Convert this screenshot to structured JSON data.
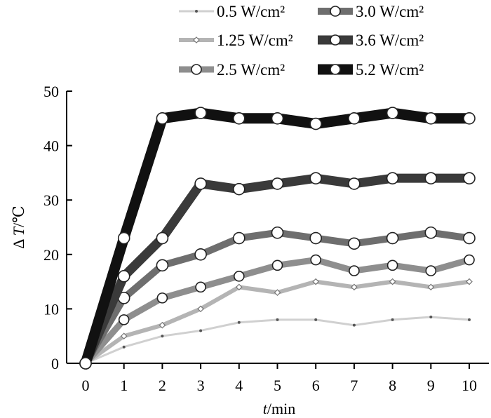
{
  "chart_data": {
    "type": "line",
    "title": "",
    "xlabel": {
      "italic": "t",
      "unit": "/min"
    },
    "ylabel": {
      "prefix": "Δ ",
      "italic": "T",
      "unit": "/℃"
    },
    "x": [
      0,
      1,
      2,
      3,
      4,
      5,
      6,
      7,
      8,
      9,
      10
    ],
    "xticks": [
      "0",
      "1",
      "2",
      "3",
      "4",
      "5",
      "6",
      "7",
      "8",
      "9",
      "10"
    ],
    "yticks": [
      "0",
      "10",
      "20",
      "30",
      "40",
      "50"
    ],
    "xlim": [
      0,
      10
    ],
    "ylim": [
      0,
      50
    ],
    "grid": false,
    "legend_position": "top",
    "series": [
      {
        "name": "0.5 W/cm²",
        "values": [
          0,
          3,
          5,
          6,
          7.5,
          8,
          8,
          7,
          8,
          8.5,
          8
        ],
        "color": "#d0d0d0",
        "marker": "dot"
      },
      {
        "name": "1.25 W/cm²",
        "values": [
          0,
          5,
          7,
          10,
          14,
          13,
          15,
          14,
          15,
          14,
          15
        ],
        "color": "#b4b4b4",
        "marker": "diamond"
      },
      {
        "name": "2.5 W/cm²",
        "values": [
          0,
          8,
          12,
          14,
          16,
          18,
          19,
          17,
          18,
          17,
          19
        ],
        "color": "#8e8e8e",
        "marker": "circle"
      },
      {
        "name": "3.0 W/cm²",
        "values": [
          0,
          12,
          18,
          20,
          23,
          24,
          23,
          22,
          23,
          24,
          23
        ],
        "color": "#6e6e6e",
        "marker": "circle"
      },
      {
        "name": "3.6 W/cm²",
        "values": [
          0,
          16,
          23,
          33,
          32,
          33,
          34,
          33,
          34,
          34,
          34
        ],
        "color": "#3a3a3a",
        "marker": "circle"
      },
      {
        "name": "5.2 W/cm²",
        "values": [
          0,
          23,
          45,
          46,
          45,
          45,
          44,
          45,
          46,
          45,
          45
        ],
        "color": "#111111",
        "marker": "circle"
      }
    ]
  }
}
